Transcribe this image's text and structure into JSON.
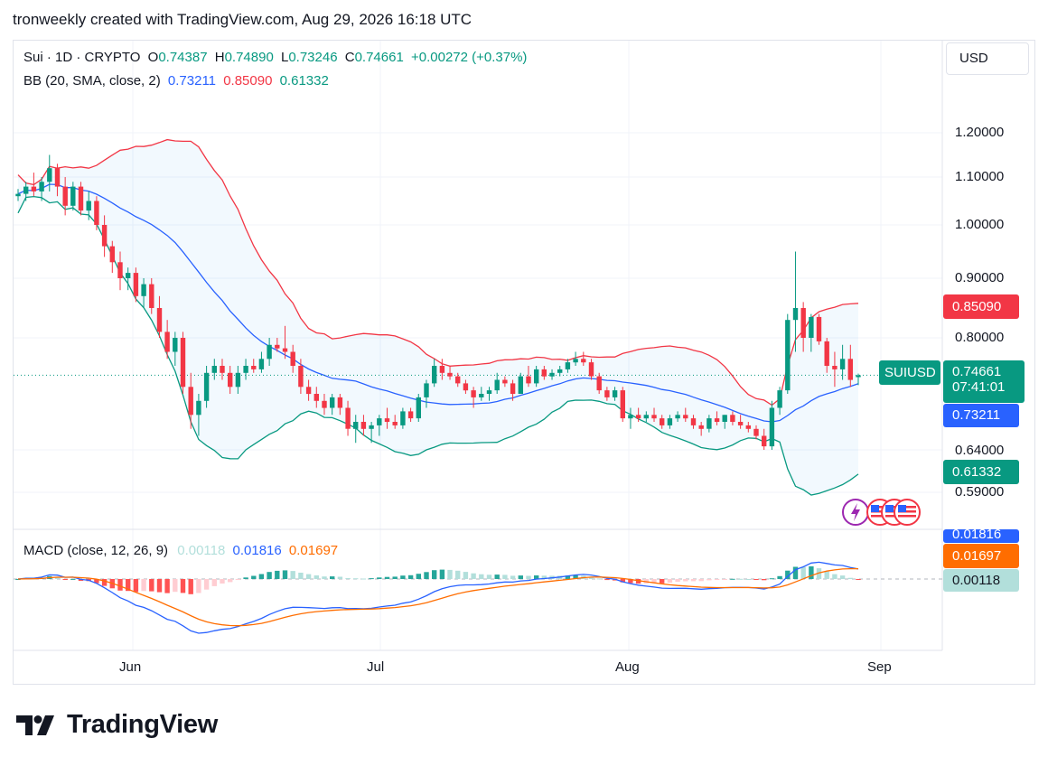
{
  "header": {
    "attribution": "tronweekly created with TradingView.com, Aug 29, 2026 16:18 UTC"
  },
  "legend": {
    "symbol": "Sui · 1D · CRYPTO",
    "open_label": "O",
    "open": "0.74387",
    "high_label": "H",
    "high": "0.74890",
    "low_label": "L",
    "low": "0.73246",
    "close_label": "C",
    "close": "0.74661",
    "change": "+0.00272 (+0.37%)",
    "bb_label": "BB (20, SMA, close, 2)",
    "bb_basis": "0.73211",
    "bb_upper": "0.85090",
    "bb_lower": "0.61332",
    "macd_label": "MACD (close, 12, 26, 9)",
    "macd_hist": "0.00118",
    "macd_line": "0.01816",
    "macd_signal": "0.01697"
  },
  "currency": "USD",
  "price_axis": [
    "1.20000",
    "1.10000",
    "1.00000",
    "0.90000",
    "0.80000",
    "0.64000",
    "0.59000"
  ],
  "tags": {
    "upper": "0.85090",
    "symbol": "SUIUSD",
    "price": "0.74661",
    "countdown": "07:41:01",
    "basis": "0.73211",
    "lower": "0.61332",
    "macd_line": "0.01816",
    "macd_signal": "0.01697",
    "macd_hist": "0.00118"
  },
  "time_axis": [
    "Jun",
    "Jul",
    "Aug",
    "Sep"
  ],
  "brand": "TradingView",
  "colors": {
    "up": "#089981",
    "down": "#f23645",
    "bb_basis": "#2962ff",
    "bb_upper": "#f23645",
    "bb_lower": "#089981",
    "macd": "#2962ff",
    "signal": "#ff6d00"
  },
  "chart_data": {
    "type": "candlestick",
    "symbol": "SUIUSD",
    "interval": "1D",
    "price_range": [
      0.58,
      1.3
    ],
    "time_labels": [
      "Jun",
      "Jul",
      "Aug",
      "Sep"
    ],
    "candles_ohlc": [
      [
        1.06,
        1.075,
        1.05,
        1.065
      ],
      [
        1.065,
        1.09,
        1.05,
        1.08
      ],
      [
        1.08,
        1.11,
        1.06,
        1.07
      ],
      [
        1.07,
        1.1,
        1.05,
        1.09
      ],
      [
        1.09,
        1.15,
        1.07,
        1.12
      ],
      [
        1.12,
        1.13,
        1.06,
        1.08
      ],
      [
        1.08,
        1.1,
        1.02,
        1.04
      ],
      [
        1.04,
        1.09,
        1.03,
        1.08
      ],
      [
        1.08,
        1.09,
        1.02,
        1.03
      ],
      [
        1.03,
        1.07,
        1.01,
        1.05
      ],
      [
        1.05,
        1.06,
        0.99,
        1.0
      ],
      [
        1.0,
        1.02,
        0.94,
        0.96
      ],
      [
        0.96,
        0.97,
        0.91,
        0.93
      ],
      [
        0.93,
        0.95,
        0.88,
        0.9
      ],
      [
        0.9,
        0.92,
        0.88,
        0.91
      ],
      [
        0.91,
        0.92,
        0.86,
        0.87
      ],
      [
        0.87,
        0.9,
        0.85,
        0.89
      ],
      [
        0.89,
        0.9,
        0.84,
        0.85
      ],
      [
        0.85,
        0.87,
        0.8,
        0.81
      ],
      [
        0.81,
        0.83,
        0.77,
        0.78
      ],
      [
        0.78,
        0.81,
        0.76,
        0.8
      ],
      [
        0.8,
        0.81,
        0.72,
        0.73
      ],
      [
        0.73,
        0.75,
        0.67,
        0.69
      ],
      [
        0.69,
        0.72,
        0.66,
        0.71
      ],
      [
        0.71,
        0.76,
        0.7,
        0.75
      ],
      [
        0.75,
        0.77,
        0.74,
        0.76
      ],
      [
        0.76,
        0.77,
        0.74,
        0.75
      ],
      [
        0.75,
        0.76,
        0.72,
        0.73
      ],
      [
        0.73,
        0.76,
        0.72,
        0.75
      ],
      [
        0.75,
        0.77,
        0.74,
        0.76
      ],
      [
        0.76,
        0.77,
        0.75,
        0.755
      ],
      [
        0.755,
        0.78,
        0.75,
        0.77
      ],
      [
        0.77,
        0.8,
        0.76,
        0.79
      ],
      [
        0.79,
        0.8,
        0.78,
        0.785
      ],
      [
        0.785,
        0.82,
        0.77,
        0.78
      ],
      [
        0.78,
        0.79,
        0.75,
        0.76
      ],
      [
        0.76,
        0.77,
        0.72,
        0.73
      ],
      [
        0.73,
        0.74,
        0.71,
        0.72
      ],
      [
        0.72,
        0.73,
        0.7,
        0.71
      ],
      [
        0.71,
        0.72,
        0.69,
        0.7
      ],
      [
        0.7,
        0.72,
        0.69,
        0.715
      ],
      [
        0.715,
        0.72,
        0.69,
        0.7
      ],
      [
        0.7,
        0.71,
        0.66,
        0.67
      ],
      [
        0.67,
        0.69,
        0.65,
        0.68
      ],
      [
        0.68,
        0.69,
        0.66,
        0.67
      ],
      [
        0.67,
        0.68,
        0.65,
        0.675
      ],
      [
        0.675,
        0.69,
        0.66,
        0.685
      ],
      [
        0.685,
        0.7,
        0.67,
        0.68
      ],
      [
        0.68,
        0.69,
        0.67,
        0.675
      ],
      [
        0.675,
        0.7,
        0.67,
        0.695
      ],
      [
        0.695,
        0.7,
        0.68,
        0.685
      ],
      [
        0.685,
        0.72,
        0.68,
        0.715
      ],
      [
        0.715,
        0.74,
        0.7,
        0.735
      ],
      [
        0.735,
        0.77,
        0.73,
        0.76
      ],
      [
        0.76,
        0.77,
        0.74,
        0.75
      ],
      [
        0.75,
        0.76,
        0.74,
        0.745
      ],
      [
        0.745,
        0.75,
        0.73,
        0.735
      ],
      [
        0.735,
        0.74,
        0.72,
        0.725
      ],
      [
        0.725,
        0.73,
        0.7,
        0.715
      ],
      [
        0.715,
        0.73,
        0.71,
        0.72
      ],
      [
        0.72,
        0.73,
        0.71,
        0.725
      ],
      [
        0.725,
        0.75,
        0.72,
        0.74
      ],
      [
        0.74,
        0.745,
        0.73,
        0.735
      ],
      [
        0.735,
        0.74,
        0.71,
        0.72
      ],
      [
        0.72,
        0.75,
        0.72,
        0.745
      ],
      [
        0.745,
        0.76,
        0.73,
        0.735
      ],
      [
        0.735,
        0.76,
        0.73,
        0.755
      ],
      [
        0.755,
        0.76,
        0.74,
        0.745
      ],
      [
        0.745,
        0.755,
        0.74,
        0.75
      ],
      [
        0.75,
        0.76,
        0.745,
        0.755
      ],
      [
        0.755,
        0.77,
        0.75,
        0.765
      ],
      [
        0.765,
        0.78,
        0.76,
        0.77
      ],
      [
        0.77,
        0.78,
        0.76,
        0.765
      ],
      [
        0.765,
        0.77,
        0.74,
        0.745
      ],
      [
        0.745,
        0.75,
        0.72,
        0.725
      ],
      [
        0.725,
        0.73,
        0.71,
        0.715
      ],
      [
        0.715,
        0.73,
        0.71,
        0.725
      ],
      [
        0.725,
        0.73,
        0.68,
        0.685
      ],
      [
        0.685,
        0.7,
        0.67,
        0.69
      ],
      [
        0.69,
        0.7,
        0.68,
        0.685
      ],
      [
        0.685,
        0.695,
        0.68,
        0.69
      ],
      [
        0.69,
        0.7,
        0.68,
        0.685
      ],
      [
        0.685,
        0.69,
        0.67,
        0.675
      ],
      [
        0.675,
        0.69,
        0.67,
        0.685
      ],
      [
        0.685,
        0.695,
        0.68,
        0.69
      ],
      [
        0.69,
        0.7,
        0.68,
        0.685
      ],
      [
        0.685,
        0.69,
        0.67,
        0.675
      ],
      [
        0.675,
        0.68,
        0.66,
        0.67
      ],
      [
        0.67,
        0.69,
        0.665,
        0.685
      ],
      [
        0.685,
        0.695,
        0.675,
        0.68
      ],
      [
        0.68,
        0.69,
        0.67,
        0.69
      ],
      [
        0.69,
        0.695,
        0.675,
        0.68
      ],
      [
        0.68,
        0.69,
        0.67,
        0.675
      ],
      [
        0.675,
        0.68,
        0.665,
        0.67
      ],
      [
        0.67,
        0.675,
        0.655,
        0.66
      ],
      [
        0.66,
        0.67,
        0.64,
        0.645
      ],
      [
        0.645,
        0.71,
        0.64,
        0.7
      ],
      [
        0.7,
        0.73,
        0.69,
        0.725
      ],
      [
        0.725,
        0.84,
        0.72,
        0.83
      ],
      [
        0.83,
        0.95,
        0.78,
        0.85
      ],
      [
        0.85,
        0.86,
        0.78,
        0.8
      ],
      [
        0.8,
        0.84,
        0.78,
        0.835
      ],
      [
        0.835,
        0.84,
        0.79,
        0.795
      ],
      [
        0.795,
        0.8,
        0.75,
        0.76
      ],
      [
        0.76,
        0.78,
        0.73,
        0.755
      ],
      [
        0.755,
        0.79,
        0.74,
        0.77
      ],
      [
        0.77,
        0.79,
        0.73,
        0.74
      ],
      [
        0.74387,
        0.7489,
        0.73246,
        0.74661
      ]
    ],
    "bollinger": {
      "period": 20,
      "basis": 0.73211,
      "upper": 0.8509,
      "lower": 0.61332
    },
    "macd": {
      "fast": 12,
      "slow": 26,
      "signal": 9,
      "histogram": 0.00118,
      "macd": 0.01816,
      "signal_value": 0.01697
    }
  }
}
